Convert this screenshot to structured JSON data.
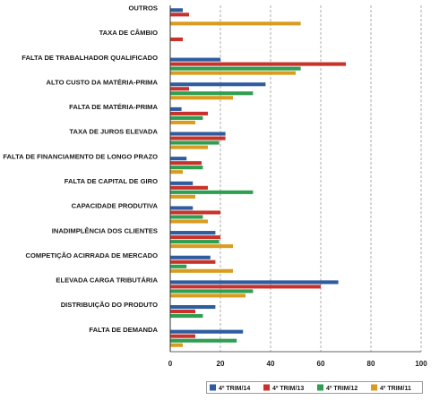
{
  "chart_data": {
    "type": "bar",
    "orientation": "horizontal",
    "categories": [
      "OUTROS",
      "TAXA DE CÂMBIO",
      "FALTA DE TRABALHADOR QUALIFICADO",
      "ALTO CUSTO DA MATÉRIA-PRIMA",
      "FALTA DE MATÉRIA-PRIMA",
      "TAXA DE JUROS ELEVADA",
      "FALTA DE FINANCIAMENTO DE LONGO PRAZO",
      "FALTA DE CAPITAL DE GIRO",
      "CAPACIDADE PRODUTIVA",
      "INADIMPLÊNCIA DOS CLIENTES",
      "COMPETIÇÃO ACIRRADA DE MERCADO",
      "ELEVADA CARGA TRIBUTÁRIA",
      "DISTRIBUIÇÃO DO PRODUTO",
      "FALTA DE DEMANDA"
    ],
    "series": [
      {
        "name": "4º TRIM/14",
        "color": "#2e5c9e",
        "values": [
          5,
          0,
          20,
          38,
          4.5,
          22,
          6.5,
          9,
          9,
          18,
          16,
          67,
          18,
          29
        ]
      },
      {
        "name": "4º TRIM/13",
        "color": "#c8322b",
        "values": [
          7.5,
          5,
          70,
          7.5,
          15,
          22,
          12.5,
          15,
          20,
          20,
          18,
          60,
          10,
          10
        ]
      },
      {
        "name": "4º TRIM/12",
        "color": "#2e9e50",
        "values": [
          0,
          0,
          52,
          33,
          13,
          19.5,
          13,
          33,
          13,
          19.5,
          6.5,
          33,
          13,
          26.5
        ]
      },
      {
        "name": "4º TRIM/11",
        "color": "#d99c1f",
        "values": [
          52,
          0,
          50,
          25,
          10,
          15,
          5,
          10,
          15,
          25,
          25,
          30,
          0,
          5
        ]
      }
    ],
    "xlim": [
      0,
      100
    ],
    "xticks": [
      0,
      20,
      40,
      60,
      80,
      100
    ],
    "grid": "vertical-dashed",
    "legend_position": "bottom-right"
  }
}
